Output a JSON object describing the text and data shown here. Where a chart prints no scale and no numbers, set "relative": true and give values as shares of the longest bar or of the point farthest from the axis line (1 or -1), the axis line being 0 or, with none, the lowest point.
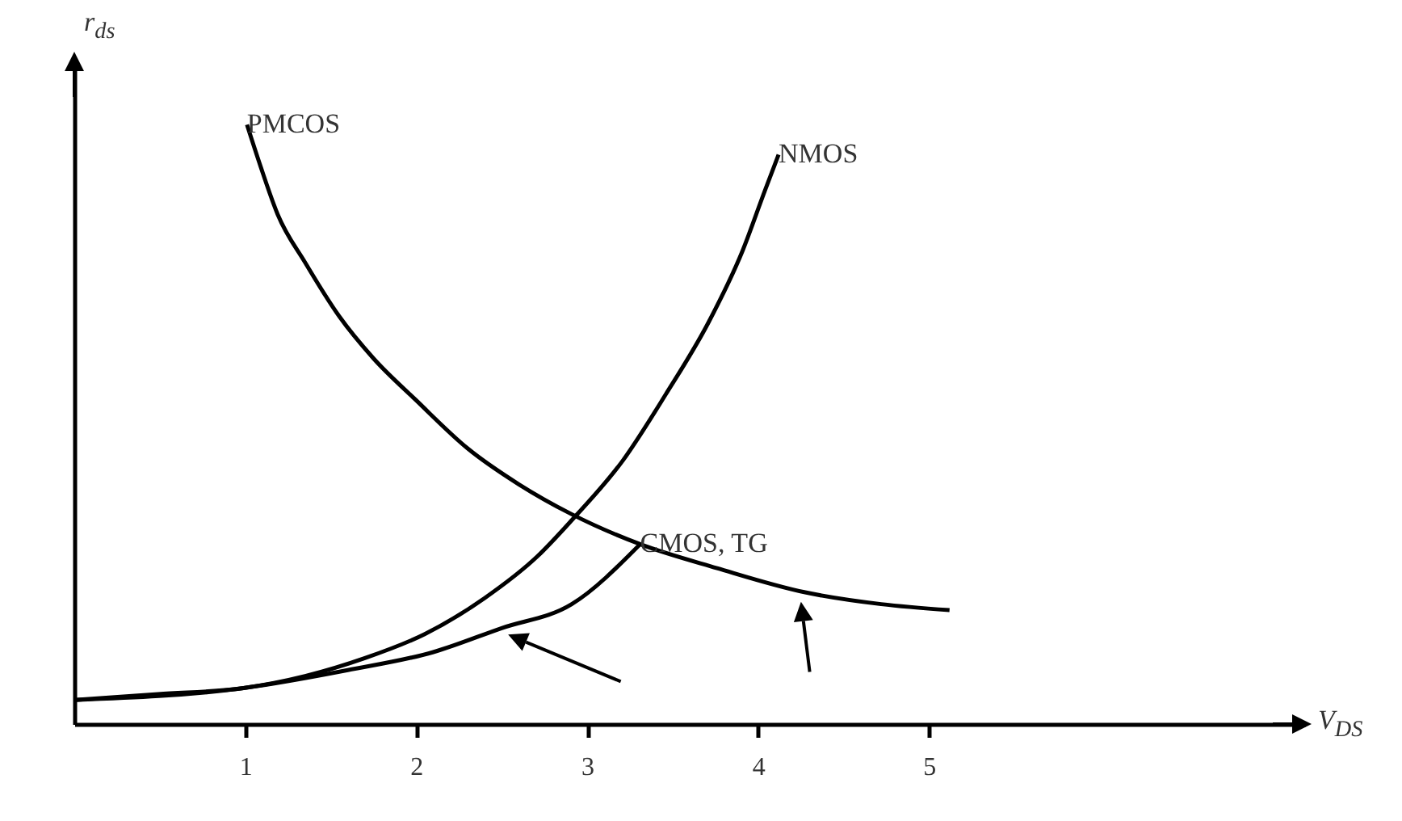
{
  "chart_data": {
    "type": "line",
    "relative": true,
    "xlabel": "V$_{DS}$",
    "ylabel": "r$_{ds}$",
    "xlim": [
      0,
      7.2
    ],
    "xticks": [
      1,
      2,
      3,
      4,
      5
    ],
    "tick_labels": "x",
    "grid": false,
    "line_style": "solid",
    "marker": "none",
    "series": [
      {
        "name": "PMCOS",
        "color": "#000000",
        "x": [
          1.01,
          1.09,
          1.19,
          1.35,
          1.55,
          1.75,
          2.0,
          2.3,
          2.6,
          2.91,
          3.31,
          3.76,
          4.27,
          4.72,
          5.12
        ],
        "values": [
          1,
          0.93,
          0.85,
          0.77,
          0.68,
          0.61,
          0.54,
          0.46,
          0.4,
          0.35,
          0.3,
          0.26,
          0.22,
          0.2,
          0.19
        ]
      },
      {
        "name": "NMOS",
        "color": "#000000",
        "x": [
          0,
          0.49,
          0.99,
          1.35,
          1.7,
          2.05,
          2.4,
          2.71,
          2.91,
          3.21,
          3.46,
          3.71,
          3.91,
          4.04,
          4.12
        ],
        "values": [
          0.04,
          0.05,
          0.06,
          0.08,
          0.11,
          0.15,
          0.21,
          0.28,
          0.34,
          0.44,
          0.55,
          0.67,
          0.79,
          0.89,
          0.95
        ]
      },
      {
        "name": "CMOS, TG",
        "color": "#000000",
        "x": [
          0,
          0.99,
          1.6,
          2.1,
          2.5,
          2.91,
          3.31
        ],
        "values": [
          0.04,
          0.06,
          0.09,
          0.12,
          0.16,
          0.2,
          0.3
        ]
      }
    ]
  }
}
